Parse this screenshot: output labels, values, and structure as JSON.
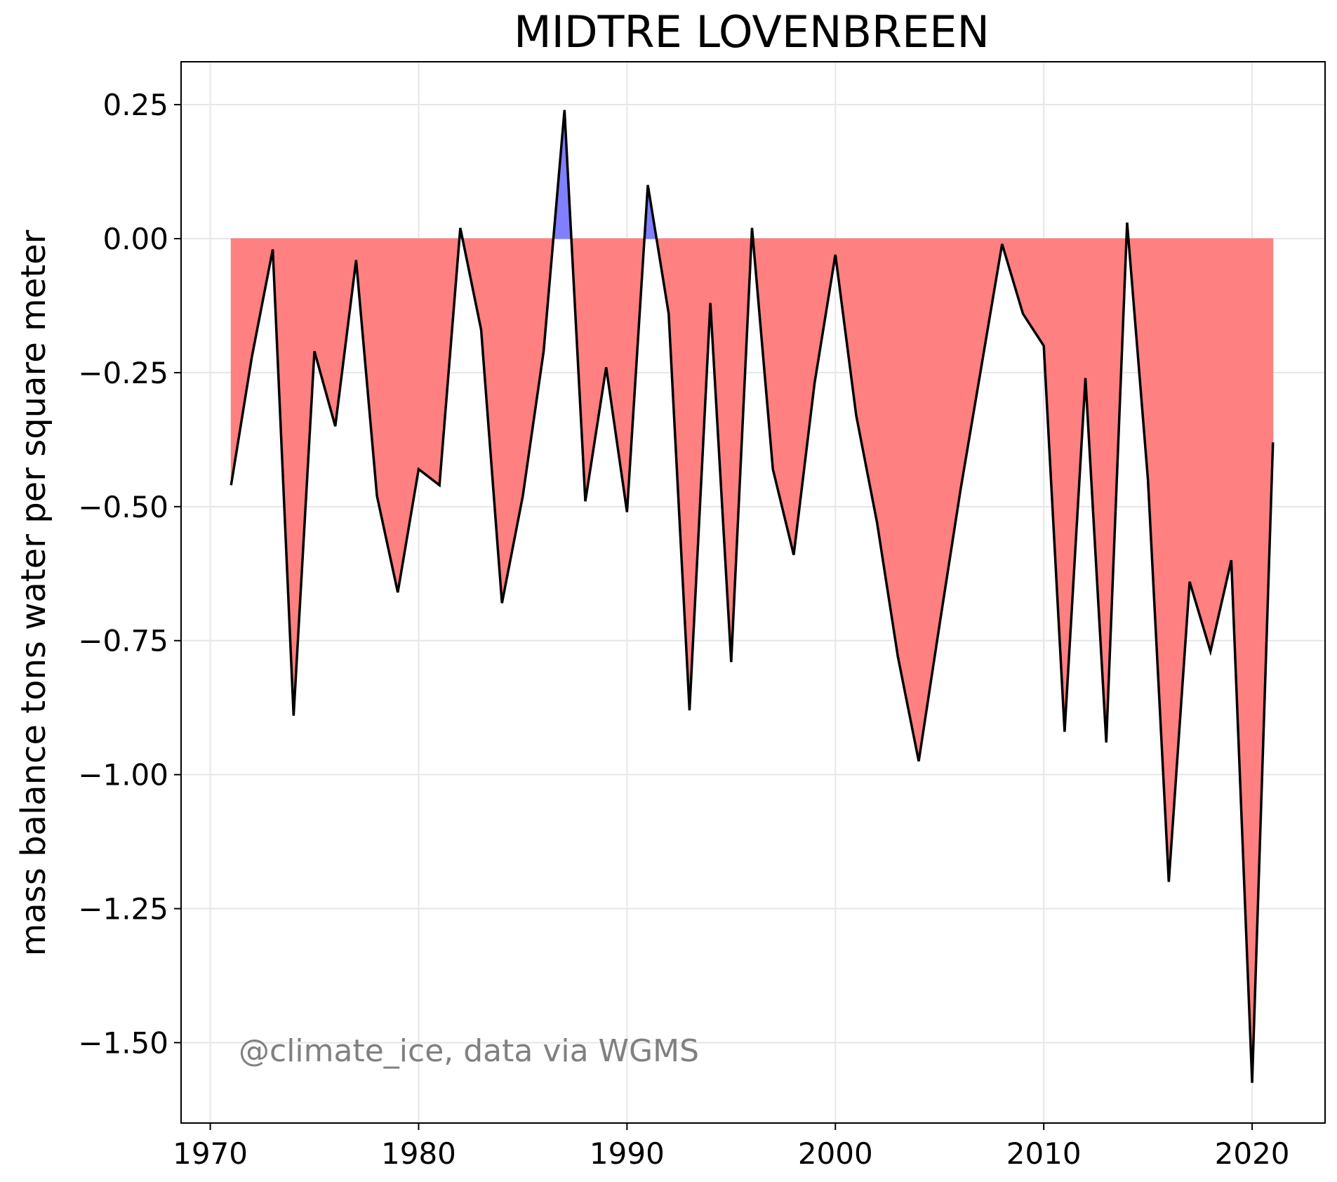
{
  "chart_data": {
    "type": "area",
    "title": "MIDTRE LOVENBREEN",
    "xlabel": "",
    "ylabel": "mass balance tons water per square meter",
    "annotation": "@climate_ice, data via WGMS",
    "xlim": [
      1968.6,
      2023.5
    ],
    "ylim": [
      -1.65,
      0.33
    ],
    "xticks": [
      1970,
      1980,
      1990,
      2000,
      2010,
      2020
    ],
    "yticks": [
      0.25,
      0.0,
      -0.25,
      -0.5,
      -0.75,
      -1.0,
      -1.25,
      -1.5
    ],
    "ytick_labels": [
      "0.25",
      "0.00",
      "−0.25",
      "−0.50",
      "−0.75",
      "−1.00",
      "−1.25",
      "−1.50"
    ],
    "grid": true,
    "colors": {
      "negative_fill": "#ff8080",
      "positive_fill": "#8080ff",
      "line": "#000000",
      "grid": "#e6e6e6",
      "annotation": "#808080"
    },
    "series": [
      {
        "x": [
          1971,
          1972,
          1973,
          1974,
          1975,
          1976,
          1977,
          1978,
          1979,
          1980,
          1981,
          1982,
          1983,
          1984,
          1985,
          1986,
          1987,
          1988,
          1989,
          1990,
          1991,
          1992,
          1993,
          1994,
          1995,
          1996,
          1997,
          1998,
          1999,
          2000,
          2001,
          2002,
          2003,
          2004,
          2005,
          2006,
          2007,
          2008,
          2009,
          2010,
          2011,
          2012,
          2013,
          2014,
          2015,
          2016,
          2017,
          2018,
          2019,
          2020,
          2021
        ],
        "values": [
          -0.46,
          -0.22,
          -0.02,
          -0.89,
          -0.21,
          -0.35,
          -0.04,
          -0.48,
          -0.66,
          -0.43,
          -0.46,
          0.02,
          -0.17,
          -0.68,
          -0.48,
          -0.21,
          0.24,
          -0.49,
          -0.24,
          -0.51,
          0.1,
          -0.14,
          -0.88,
          -0.12,
          -0.79,
          0.02,
          -0.43,
          -0.59,
          -0.27,
          -0.03,
          -0.33,
          -0.53,
          -0.78,
          -0.975,
          -0.72,
          -0.47,
          -0.24,
          -0.01,
          -0.14,
          -0.2,
          -0.92,
          -0.26,
          -0.94,
          0.03,
          -0.45,
          -1.2,
          -0.64,
          -0.77,
          -0.6,
          -1.575,
          -0.38
        ]
      }
    ]
  }
}
